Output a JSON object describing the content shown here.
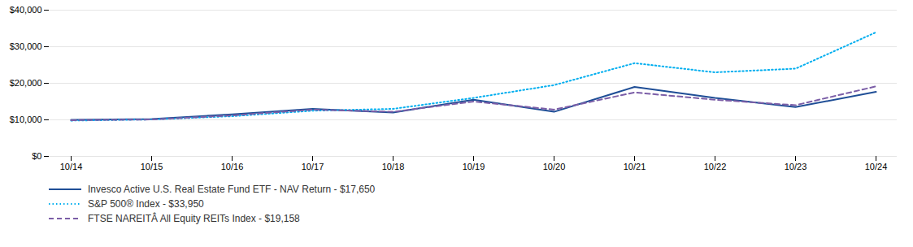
{
  "chart_data": {
    "type": "line",
    "categories": [
      "10/14",
      "10/15",
      "10/16",
      "10/17",
      "10/18",
      "10/19",
      "10/20",
      "10/21",
      "10/22",
      "10/23",
      "10/24"
    ],
    "series": [
      {
        "name": "Invesco Active U.S. Real Estate Fund ETF - NAV Return - $17,650",
        "color": "#1f4e96",
        "line_style": "solid",
        "values": [
          10000,
          10200,
          11500,
          13000,
          12000,
          15500,
          12200,
          19000,
          16000,
          13500,
          17650
        ]
      },
      {
        "name": "S&P 500® Index - $33,950",
        "color": "#00aeef",
        "line_style": "dotted",
        "values": [
          9800,
          10100,
          11000,
          12500,
          13000,
          16000,
          19500,
          25500,
          23000,
          24000,
          33950
        ]
      },
      {
        "name": "FTSE NAREITÂ All Equity REITs Index - $19,158",
        "color": "#7b5ea7",
        "line_style": "dashed",
        "values": [
          9900,
          10100,
          11200,
          12800,
          12200,
          15000,
          12800,
          17500,
          15500,
          14000,
          19158
        ]
      }
    ],
    "ylim": [
      0,
      40000
    ],
    "yticks": [
      {
        "value": 0,
        "label": "$0"
      },
      {
        "value": 10000,
        "label": "$10,000"
      },
      {
        "value": 20000,
        "label": "$20,000"
      },
      {
        "value": 30000,
        "label": "$30,000"
      },
      {
        "value": 40000,
        "label": "$40,000"
      }
    ],
    "grid": true,
    "legend": "lower left"
  }
}
